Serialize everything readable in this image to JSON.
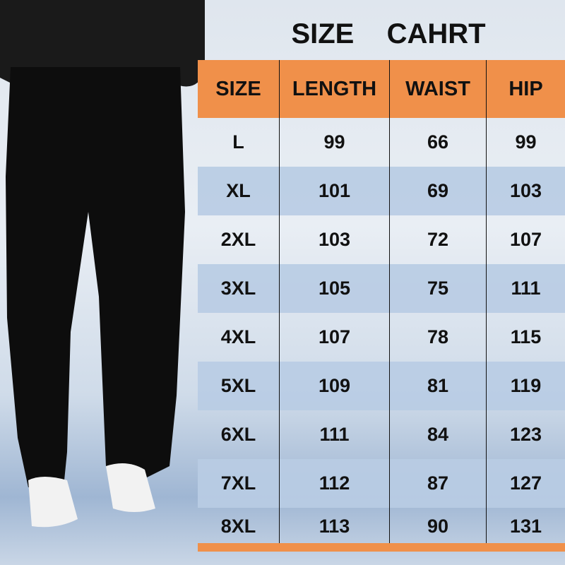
{
  "title": "SIZE  CAHRT",
  "colors": {
    "header": "#f0904a",
    "alt_row": "#b9cce4",
    "bottom_bar": "#f0904a"
  },
  "table": {
    "headers": [
      "SIZE",
      "LENGTH",
      "WAIST",
      "HIP"
    ],
    "rows": [
      [
        "L",
        "99",
        "66",
        "99"
      ],
      [
        "XL",
        "101",
        "69",
        "103"
      ],
      [
        "2XL",
        "103",
        "72",
        "107"
      ],
      [
        "3XL",
        "105",
        "75",
        "111"
      ],
      [
        "4XL",
        "107",
        "78",
        "115"
      ],
      [
        "5XL",
        "109",
        "81",
        "119"
      ],
      [
        "6XL",
        "111",
        "84",
        "123"
      ],
      [
        "7XL",
        "112",
        "87",
        "127"
      ],
      [
        "8XL",
        "113",
        "90",
        "131"
      ]
    ]
  }
}
